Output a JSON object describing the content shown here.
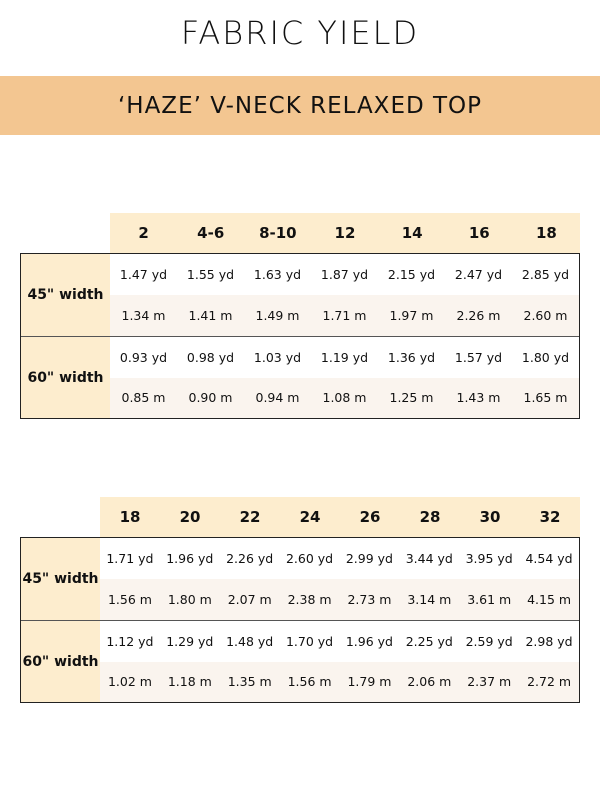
{
  "title": "FABRIC YIELD",
  "subtitle": "‘HAZE’ V-NECK RELAXED TOP",
  "tables": [
    {
      "sizes": [
        "2",
        "4-6",
        "8-10",
        "12",
        "14",
        "16",
        "18"
      ],
      "groups": [
        {
          "label": "45\" width",
          "yd": [
            "1.47 yd",
            "1.55 yd",
            "1.63 yd",
            "1.87 yd",
            "2.15 yd",
            "2.47 yd",
            "2.85 yd"
          ],
          "m": [
            "1.34 m",
            "1.41 m",
            "1.49 m",
            "1.71 m",
            "1.97 m",
            "2.26 m",
            "2.60 m"
          ]
        },
        {
          "label": "60\" width",
          "yd": [
            "0.93 yd",
            "0.98 yd",
            "1.03 yd",
            "1.19 yd",
            "1.36 yd",
            "1.57 yd",
            "1.80 yd"
          ],
          "m": [
            "0.85 m",
            "0.90 m",
            "0.94 m",
            "1.08 m",
            "1.25 m",
            "1.43 m",
            "1.65 m"
          ]
        }
      ]
    },
    {
      "sizes": [
        "18",
        "20",
        "22",
        "24",
        "26",
        "28",
        "30",
        "32"
      ],
      "groups": [
        {
          "label": "45\" width",
          "yd": [
            "1.71 yd",
            "1.96 yd",
            "2.26 yd",
            "2.60 yd",
            "2.99 yd",
            "3.44 yd",
            "3.95 yd",
            "4.54 yd"
          ],
          "m": [
            "1.56 m",
            "1.80 m",
            "2.07 m",
            "2.38 m",
            "2.73 m",
            "3.14 m",
            "3.61 m",
            "4.15 m"
          ]
        },
        {
          "label": "60\" width",
          "yd": [
            "1.12 yd",
            "1.29 yd",
            "1.48 yd",
            "1.70 yd",
            "1.96 yd",
            "2.25 yd",
            "2.59 yd",
            "2.98 yd"
          ],
          "m": [
            "1.02 m",
            "1.18 m",
            "1.35 m",
            "1.56 m",
            "1.79 m",
            "2.06 m",
            "2.37 m",
            "2.72 m"
          ]
        }
      ]
    }
  ],
  "colors": {
    "banner": "#f3c691",
    "header": "#fdedce",
    "metric_row": "#faf4ee"
  }
}
